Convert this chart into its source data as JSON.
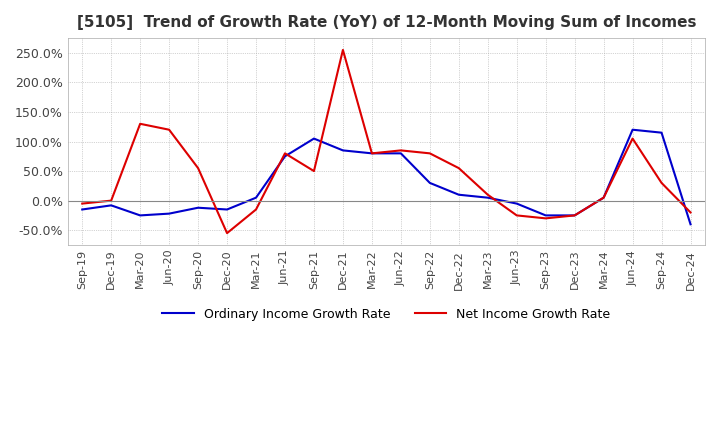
{
  "title": "[5105]  Trend of Growth Rate (YoY) of 12-Month Moving Sum of Incomes",
  "title_fontsize": 11,
  "ylim": [
    -75,
    275
  ],
  "yticks": [
    -50,
    0,
    50,
    100,
    150,
    200,
    250
  ],
  "background_color": "#ffffff",
  "grid_color": "#aaaaaa",
  "ordinary_color": "#0000cc",
  "net_color": "#dd0000",
  "x_labels": [
    "Sep-19",
    "Dec-19",
    "Mar-20",
    "Jun-20",
    "Sep-20",
    "Dec-20",
    "Mar-21",
    "Jun-21",
    "Sep-21",
    "Dec-21",
    "Mar-22",
    "Jun-22",
    "Sep-22",
    "Dec-22",
    "Mar-23",
    "Jun-23",
    "Sep-23",
    "Dec-23",
    "Mar-24",
    "Jun-24",
    "Sep-24",
    "Dec-24"
  ],
  "ordinary_income": [
    -15,
    -8,
    -25,
    -22,
    -12,
    -15,
    5,
    75,
    105,
    85,
    80,
    80,
    30,
    10,
    5,
    -5,
    -25,
    -25,
    5,
    120,
    115,
    -40
  ],
  "net_income": [
    -5,
    0,
    130,
    120,
    55,
    -55,
    -15,
    80,
    50,
    255,
    80,
    85,
    80,
    55,
    10,
    -25,
    -30,
    -25,
    5,
    105,
    30,
    -20
  ]
}
